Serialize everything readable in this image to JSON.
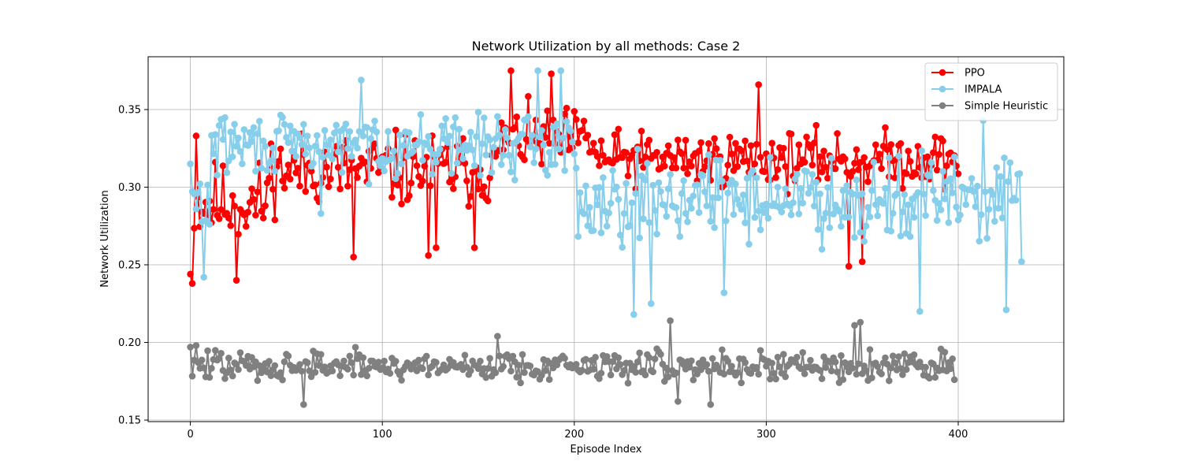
{
  "chart_data": {
    "type": "line",
    "title": "Network Utilization by all methods: Case 2",
    "xlabel": "Episode Index",
    "ylabel": "Network Utilization",
    "xlim": [
      -22,
      455
    ],
    "ylim": [
      0.149,
      0.384
    ],
    "xticks": [
      0,
      100,
      200,
      300,
      400
    ],
    "yticks": [
      0.15,
      0.2,
      0.25,
      0.3,
      0.35
    ],
    "ytick_labels": [
      "0.15",
      "0.20",
      "0.25",
      "0.30",
      "0.35"
    ],
    "grid": true,
    "legend_position": "top-right",
    "series": [
      {
        "name": "PPO",
        "color": "#ff0000",
        "segments": [
          {
            "x_start": 0,
            "x_end": 40,
            "base": 0.29,
            "amp": 0.03,
            "anchors": [
              [
                0,
                0.244
              ],
              [
                1,
                0.238
              ],
              [
                3,
                0.333
              ],
              [
                24,
                0.24
              ]
            ]
          },
          {
            "x_start": 41,
            "x_end": 160,
            "base": 0.311,
            "amp": 0.027,
            "anchors": [
              [
                85,
                0.255
              ],
              [
                124,
                0.256
              ],
              [
                128,
                0.261
              ],
              [
                148,
                0.261
              ]
            ]
          },
          {
            "x_start": 161,
            "x_end": 210,
            "base": 0.33,
            "amp": 0.023,
            "anchors": [
              [
                167,
                0.375
              ],
              [
                188,
                0.373
              ]
            ]
          },
          {
            "x_start": 211,
            "x_end": 400,
            "base": 0.318,
            "amp": 0.02,
            "anchors": [
              [
                296,
                0.366
              ],
              [
                343,
                0.249
              ],
              [
                350,
                0.252
              ]
            ]
          }
        ]
      },
      {
        "name": "IMPALA",
        "color": "#87ceeb",
        "segments": [
          {
            "x_start": 0,
            "x_end": 10,
            "base": 0.29,
            "amp": 0.025,
            "anchors": [
              [
                0,
                0.315
              ],
              [
                7,
                0.242
              ]
            ]
          },
          {
            "x_start": 11,
            "x_end": 200,
            "base": 0.327,
            "amp": 0.022,
            "anchors": [
              [
                89,
                0.369
              ],
              [
                181,
                0.375
              ],
              [
                193,
                0.375
              ],
              [
                68,
                0.283
              ]
            ]
          },
          {
            "x_start": 201,
            "x_end": 433,
            "base": 0.293,
            "amp": 0.03,
            "anchors": [
              [
                231,
                0.218
              ],
              [
                240,
                0.225
              ],
              [
                278,
                0.232
              ],
              [
                380,
                0.22
              ],
              [
                413,
                0.343
              ],
              [
                425,
                0.221
              ],
              [
                433,
                0.252
              ]
            ]
          }
        ]
      },
      {
        "name": "Simple Heuristic",
        "color": "#808080",
        "segments": [
          {
            "x_start": 0,
            "x_end": 398,
            "base": 0.185,
            "amp": 0.011,
            "anchors": [
              [
                0,
                0.197
              ],
              [
                3,
                0.198
              ],
              [
                59,
                0.16
              ],
              [
                160,
                0.204
              ],
              [
                250,
                0.214
              ],
              [
                346,
                0.211
              ],
              [
                349,
                0.213
              ],
              [
                254,
                0.162
              ],
              [
                271,
                0.16
              ],
              [
                398,
                0.176
              ]
            ]
          }
        ]
      }
    ]
  }
}
